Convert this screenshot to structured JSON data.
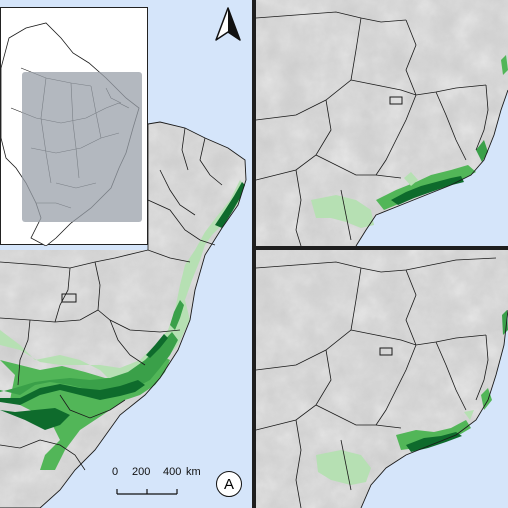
{
  "panel_label": "A",
  "north_label": "N",
  "scale_bar": {
    "ticks": [
      "0",
      "200",
      "400"
    ],
    "unit": "km"
  },
  "colors": {
    "ocean": "#d5e5fa",
    "land_light": "#d4d4d4",
    "land_dark": "#a9a9a9",
    "suitability_low": "#b6e0b3",
    "suitability_mid": "#52b658",
    "suitability_high": "#0e6b2c",
    "borders": "#1a1a1a",
    "inset_highlight": "#9aa0aa"
  },
  "icons": {
    "north_arrow": "north-arrow-icon"
  }
}
